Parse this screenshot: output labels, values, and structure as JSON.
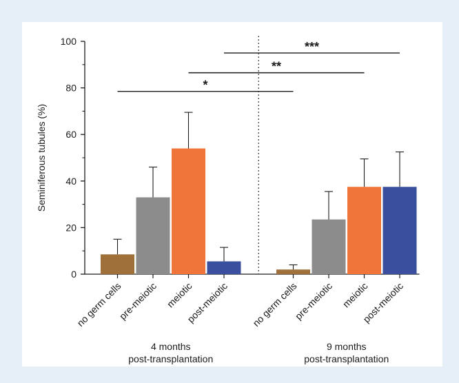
{
  "chart_data": {
    "type": "bar",
    "ylabel": "Seminiferous tubules (%)",
    "ylim": [
      0,
      100
    ],
    "yticks": [
      0,
      20,
      40,
      60,
      80,
      100
    ],
    "error_bars": "upper",
    "groups": [
      {
        "label_lines": [
          "4 months",
          "post-transplantation"
        ],
        "bars": [
          {
            "category": "no germ cells",
            "value": 8.5,
            "error": 6.5,
            "color": "#a0703a"
          },
          {
            "category": "pre-meiotic",
            "value": 33,
            "error": 13,
            "color": "#8c8c8c"
          },
          {
            "category": "meiotic",
            "value": 54,
            "error": 15.5,
            "color": "#f0753a"
          },
          {
            "category": "post-meiotic",
            "value": 5.5,
            "error": 6,
            "color": "#3a4f9e"
          }
        ]
      },
      {
        "label_lines": [
          "9 months",
          "post-transplantation"
        ],
        "bars": [
          {
            "category": "no germ cells",
            "value": 2,
            "error": 2,
            "color": "#a0703a"
          },
          {
            "category": "pre-meiotic",
            "value": 23.5,
            "error": 12,
            "color": "#8c8c8c"
          },
          {
            "category": "meiotic",
            "value": 37.5,
            "error": 12,
            "color": "#f0753a"
          },
          {
            "category": "post-meiotic",
            "value": 37.5,
            "error": 15,
            "color": "#3a4f9e"
          }
        ]
      }
    ],
    "significance": [
      {
        "label": "*",
        "y": 78.5,
        "from": [
          0,
          0
        ],
        "to": [
          1,
          0
        ]
      },
      {
        "label": "**",
        "y": 86.5,
        "from": [
          0,
          2
        ],
        "to": [
          1,
          2
        ]
      },
      {
        "label": "***",
        "y": 95,
        "from": [
          1,
          3
        ],
        "to": [
          0,
          3
        ]
      }
    ],
    "divider": "dotted-between-groups"
  }
}
